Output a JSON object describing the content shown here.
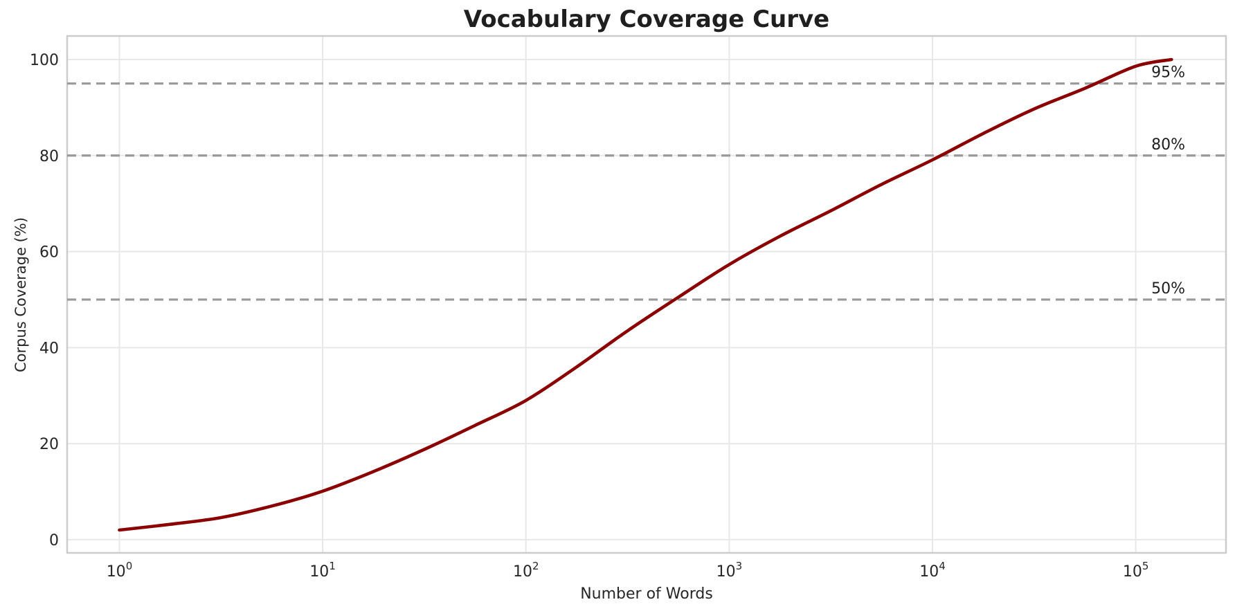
{
  "chart_data": {
    "type": "line",
    "title": "Vocabulary Coverage Curve",
    "xlabel": "Number of Words",
    "ylabel": "Corpus Coverage (%)",
    "x_scale": "log",
    "grid": true,
    "legend": "none",
    "xlim_log10": [
      -0.257,
      5.444
    ],
    "ylim": [
      -2.75,
      104.9
    ],
    "x_ticks": [
      {
        "base": "10",
        "exponent": "0",
        "value": 1
      },
      {
        "base": "10",
        "exponent": "1",
        "value": 10
      },
      {
        "base": "10",
        "exponent": "2",
        "value": 100
      },
      {
        "base": "10",
        "exponent": "3",
        "value": 1000
      },
      {
        "base": "10",
        "exponent": "4",
        "value": 10000
      },
      {
        "base": "10",
        "exponent": "5",
        "value": 100000
      }
    ],
    "y_ticks": [
      0,
      20,
      40,
      60,
      80,
      100
    ],
    "series": [
      {
        "name": "vocabulary-coverage-curve",
        "color": "#8B0000",
        "points": [
          [
            1,
            2.0
          ],
          [
            1.78,
            3.2
          ],
          [
            3.16,
            4.6
          ],
          [
            5.62,
            7.0
          ],
          [
            10,
            10.1
          ],
          [
            17.8,
            14.2
          ],
          [
            31.6,
            18.8
          ],
          [
            56.2,
            23.8
          ],
          [
            100,
            29.0
          ],
          [
            178,
            36.0
          ],
          [
            316,
            43.5
          ],
          [
            562,
            50.5
          ],
          [
            1000,
            57.3
          ],
          [
            1778,
            63.2
          ],
          [
            3162,
            68.5
          ],
          [
            5623,
            74.0
          ],
          [
            10000,
            79.1
          ],
          [
            17783,
            84.6
          ],
          [
            31623,
            89.7
          ],
          [
            56234,
            94.0
          ],
          [
            100000,
            98.6
          ],
          [
            150000,
            100.0
          ]
        ]
      }
    ],
    "reference_lines": [
      {
        "value": 95,
        "label": "95%"
      },
      {
        "value": 80,
        "label": "80%"
      },
      {
        "value": 50,
        "label": "50%"
      }
    ],
    "style": {
      "reference_color": "#999999",
      "reference_dash": [
        13,
        8
      ],
      "grid_color": "#E8E8E8",
      "spine_color": "#CBCBCB",
      "tick_color": "#262626",
      "annotation_color": "#1f1f1f",
      "background": "#ffffff"
    }
  }
}
